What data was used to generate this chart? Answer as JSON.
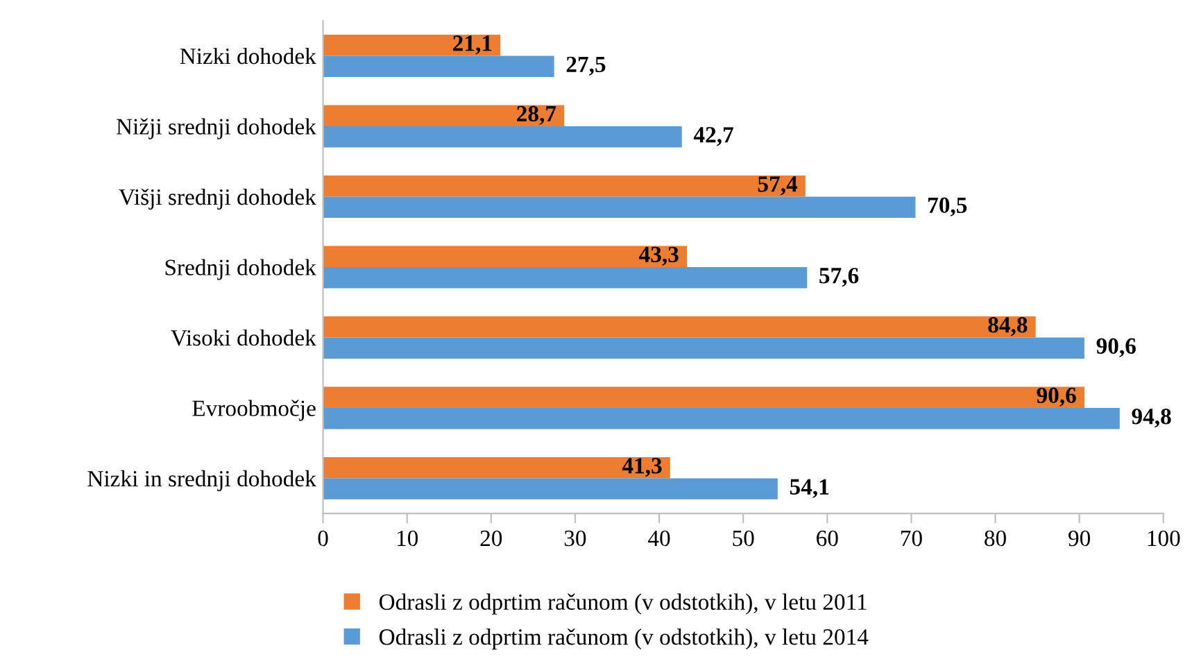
{
  "chart_data": {
    "type": "bar",
    "orientation": "horizontal",
    "categories": [
      "Nizki dohodek",
      "Nižji srednji dohodek",
      "Višji srednji dohodek",
      "Srednji dohodek",
      "Visoki dohodek",
      "Evroobmočje",
      "Nizki in srednji dohodek"
    ],
    "series": [
      {
        "name": "Odrasli z odprtim računom (v odstotkih), v letu 2011",
        "color": "#ed7d31",
        "values": [
          21.1,
          28.7,
          57.4,
          43.3,
          84.8,
          90.6,
          41.3
        ],
        "value_labels": [
          "21,1",
          "28,7",
          "57,4",
          "43,3",
          "84,8",
          "90,6",
          "41,3"
        ]
      },
      {
        "name": "Odrasli z odprtim računom (v odstotkih), v letu 2014",
        "color": "#5b9bd5",
        "values": [
          27.5,
          42.7,
          70.5,
          57.6,
          90.6,
          94.8,
          54.1
        ],
        "value_labels": [
          "27,5",
          "42,7",
          "70,5",
          "57,6",
          "90,6",
          "94,8",
          "54,1"
        ]
      }
    ],
    "xlim": [
      0,
      100
    ],
    "xticks": [
      0,
      10,
      20,
      30,
      40,
      50,
      60,
      70,
      80,
      90,
      100
    ],
    "grid": false,
    "legend": "bottom"
  }
}
